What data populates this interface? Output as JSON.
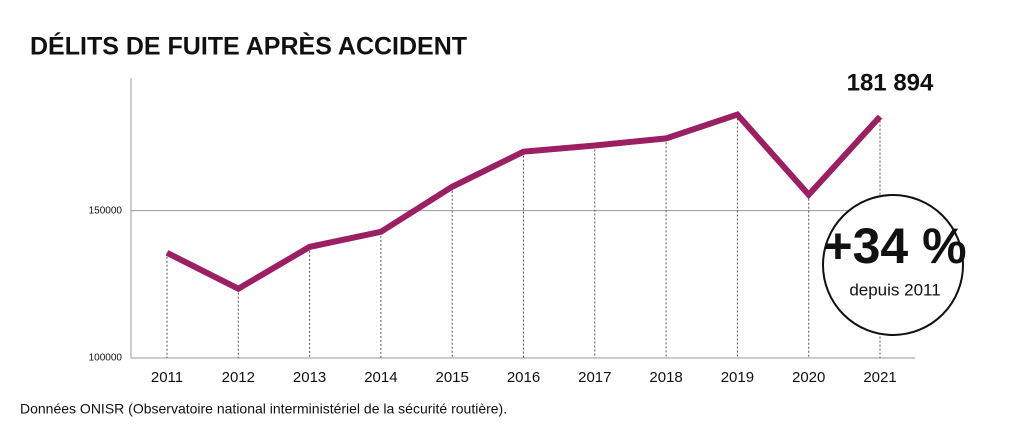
{
  "chart_data": {
    "type": "line",
    "title": "DÉLITS DE FUITE APRÈS ACCIDENT",
    "categories": [
      "2011",
      "2012",
      "2013",
      "2014",
      "2015",
      "2016",
      "2017",
      "2018",
      "2019",
      "2020",
      "2021"
    ],
    "series": [
      {
        "name": "Délits de fuite",
        "color": "#9c1f63",
        "values": [
          135700,
          123500,
          137700,
          142800,
          158100,
          170000,
          172100,
          174500,
          182600,
          155400,
          181894
        ],
        "value_labels": [
          null,
          null,
          null,
          null,
          null,
          null,
          null,
          null,
          null,
          null,
          "181 894"
        ]
      }
    ],
    "ylim": [
      100000,
      195000
    ],
    "yticks": [
      100000,
      150000
    ],
    "grid": true,
    "annotations": [
      "+34 %",
      "depuis 2011"
    ],
    "source": "Données ONISR (Observatoire national interministériel de la sécurité routière)."
  }
}
